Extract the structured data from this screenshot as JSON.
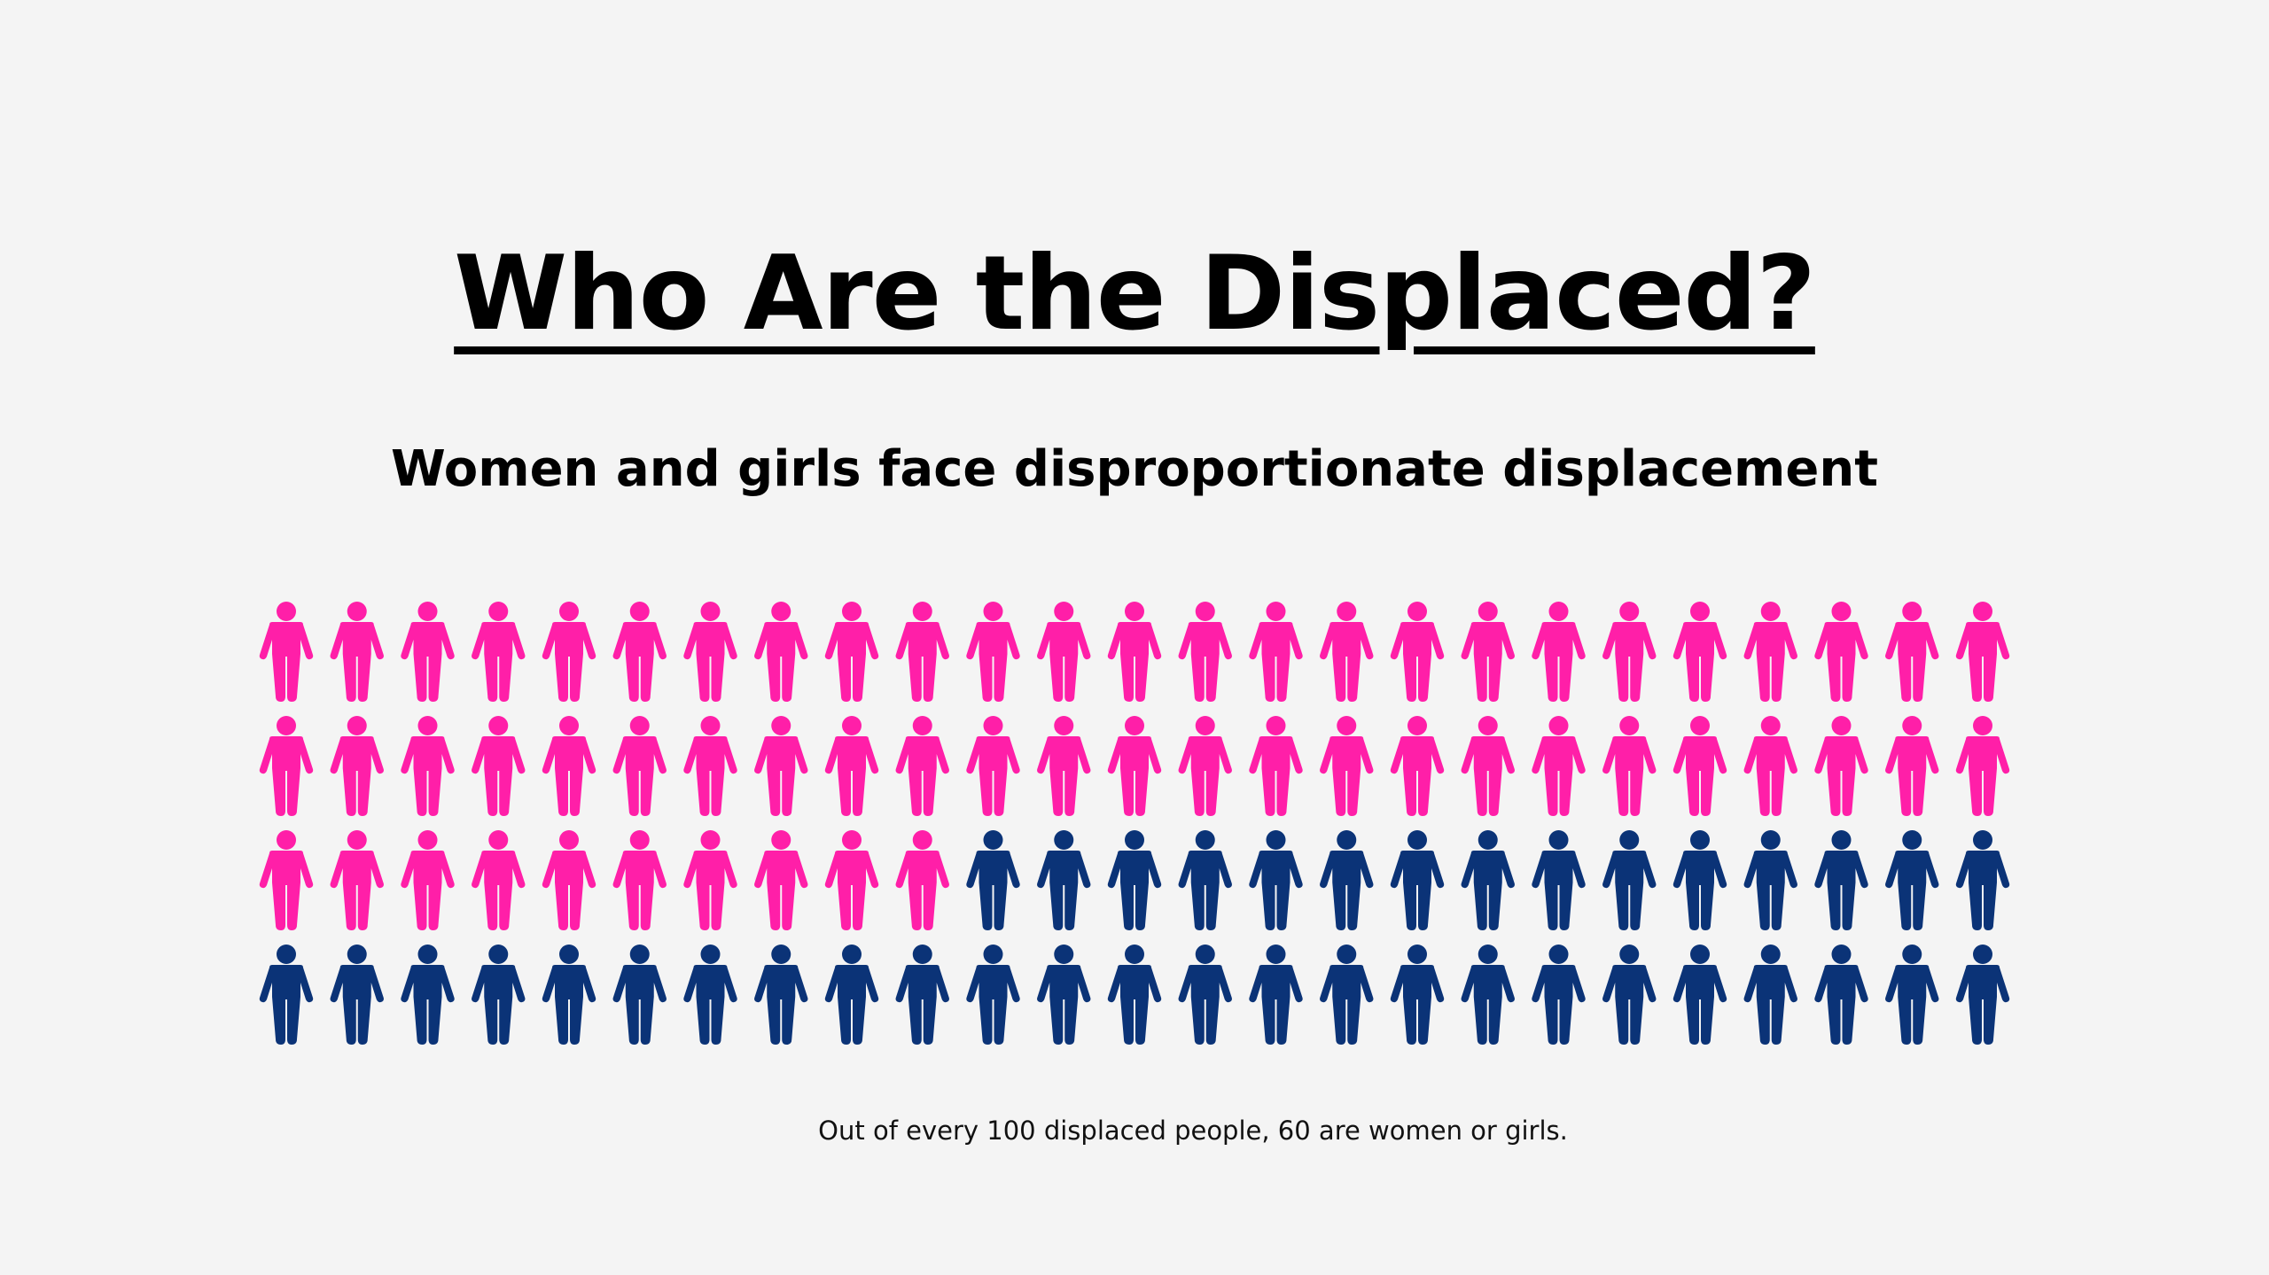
{
  "title": "Who Are the Displaced?",
  "subtitle": "Women and girls face disproportionate displacement",
  "caption": "Out of every 100 displaced people, 60 are women or girls.",
  "chart_data": {
    "type": "pictogram",
    "total": 100,
    "rows": 4,
    "columns": 25,
    "series": [
      {
        "count": 60,
        "color": "#ff1fa8",
        "icon": "person-icon"
      },
      {
        "count": 40,
        "color": "#0b3377",
        "icon": "person-icon"
      }
    ]
  }
}
